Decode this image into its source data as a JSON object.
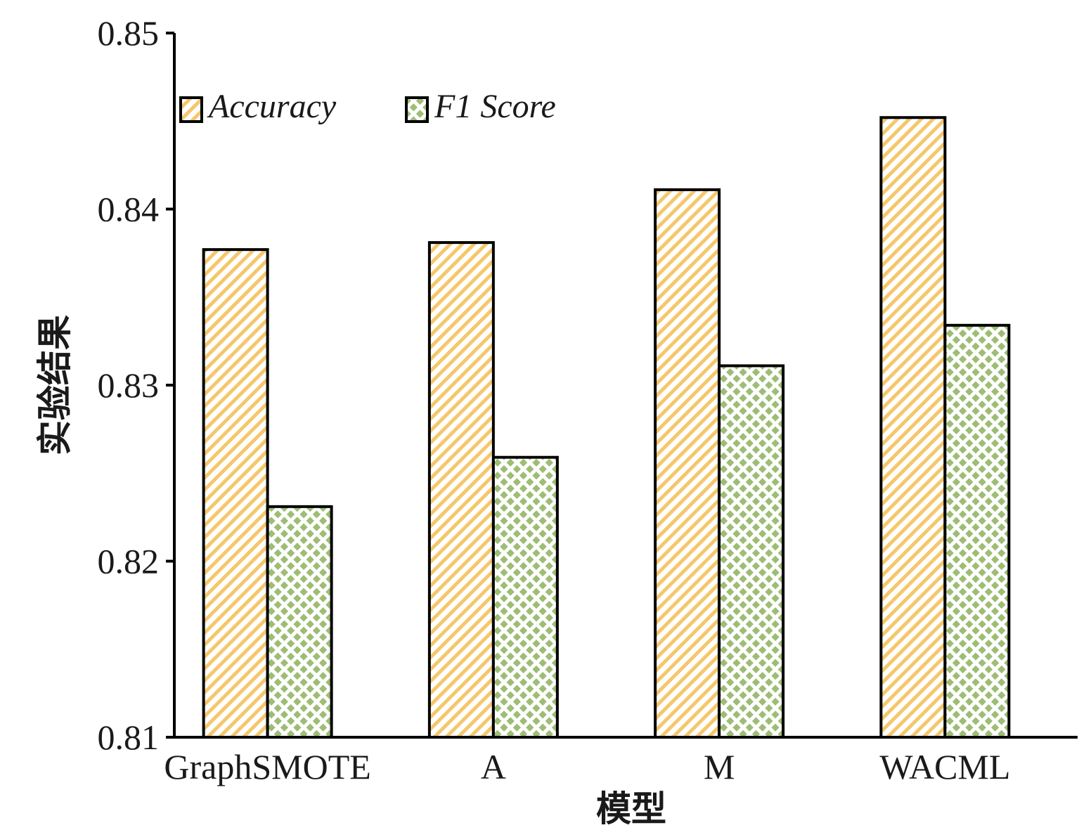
{
  "chart_data": {
    "type": "bar",
    "categories": [
      "GraphSMOTE",
      "A",
      "M",
      "WACML"
    ],
    "series": [
      {
        "name": "Accuracy",
        "values": [
          0.8377,
          0.8381,
          0.8411,
          0.8452
        ],
        "pattern": "diagonal-stripes",
        "color": "#f5c76b"
      },
      {
        "name": "F1 Score",
        "values": [
          0.8231,
          0.8259,
          0.8311,
          0.8334
        ],
        "pattern": "dots",
        "color": "#9dbd74"
      }
    ],
    "title": "",
    "xlabel": "模型",
    "ylabel": "实验结果",
    "ylim": [
      0.81,
      0.85
    ],
    "yticks": [
      0.81,
      0.82,
      0.83,
      0.84,
      0.85
    ],
    "ytick_labels": [
      "0.81",
      "0.82",
      "0.83",
      "0.84",
      "0.85"
    ],
    "grid": false,
    "legend_position": "top-left"
  }
}
